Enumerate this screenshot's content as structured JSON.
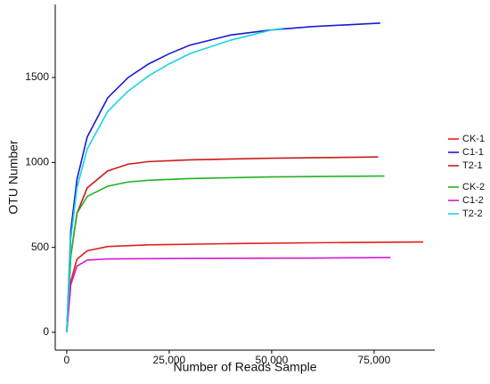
{
  "chart_data": {
    "type": "line",
    "xlabel": "Number of Reads Sample",
    "ylabel": "OTU Number",
    "xlim": [
      -2800,
      89800
    ],
    "ylim": [
      -105,
      1930
    ],
    "xticks": [
      0,
      {
        "value": 25000,
        "label": "25,000"
      },
      {
        "value": 50000,
        "label": "50,000"
      },
      {
        "value": 75000,
        "label": "75,000"
      }
    ],
    "yticks": [
      0,
      500,
      1000,
      1500
    ],
    "grid": false,
    "legend": "right",
    "series": [
      {
        "name": "CK-1",
        "color": "#e0201b",
        "x": [
          0,
          1000,
          2500,
          5000,
          10000,
          20000,
          40000,
          60000,
          87000
        ],
        "values": [
          0,
          300,
          430,
          480,
          505,
          515,
          522,
          527,
          532
        ]
      },
      {
        "name": "C1-1",
        "color": "#1a1ad6",
        "x": [
          0,
          1000,
          2500,
          5000,
          10000,
          15000,
          20000,
          25000,
          30000,
          40000,
          50000,
          60000,
          76500
        ],
        "values": [
          0,
          600,
          900,
          1150,
          1380,
          1500,
          1580,
          1640,
          1690,
          1750,
          1780,
          1800,
          1820
        ]
      },
      {
        "name": "T2-1",
        "color": "#cc1a1a",
        "x": [
          0,
          1000,
          2500,
          5000,
          10000,
          15000,
          20000,
          30000,
          50000,
          76000
        ],
        "values": [
          0,
          450,
          700,
          850,
          950,
          990,
          1005,
          1015,
          1025,
          1032
        ]
      },
      {
        "name": "CK-2",
        "color": "#22b322",
        "x": [
          0,
          1000,
          2500,
          5000,
          10000,
          15000,
          20000,
          30000,
          50000,
          77500
        ],
        "values": [
          0,
          450,
          700,
          800,
          860,
          885,
          895,
          905,
          915,
          920
        ]
      },
      {
        "name": "C1-2",
        "color": "#d41ad4",
        "x": [
          0,
          1000,
          2500,
          5000,
          10000,
          30000,
          60000,
          79000
        ],
        "values": [
          0,
          280,
          390,
          425,
          432,
          435,
          437,
          440
        ]
      },
      {
        "name": "T2-2",
        "color": "#1ad4e0",
        "x": [
          0,
          1000,
          2500,
          5000,
          10000,
          15000,
          20000,
          25000,
          30000,
          40000,
          50000,
          53000
        ],
        "values": [
          0,
          550,
          850,
          1080,
          1300,
          1420,
          1510,
          1580,
          1640,
          1720,
          1780,
          1790
        ]
      }
    ]
  }
}
